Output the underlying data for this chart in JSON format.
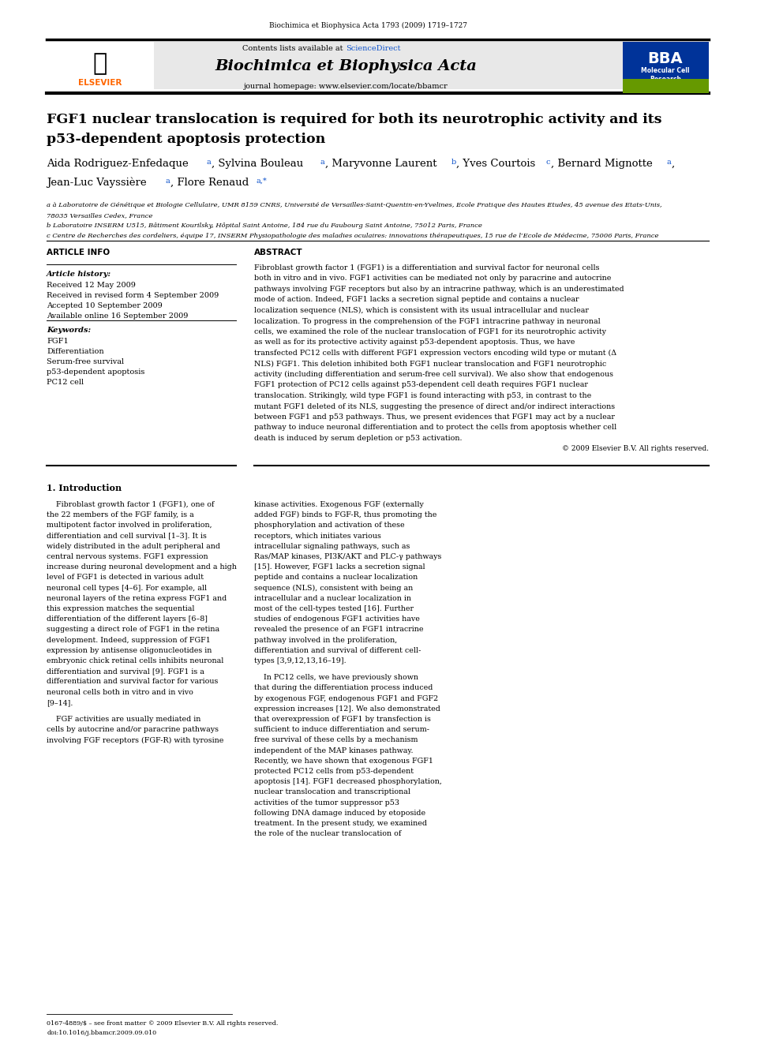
{
  "page_width": 9.92,
  "page_height": 13.23,
  "bg_color": "#ffffff",
  "header_journal_ref": "Biochimica et Biophysica Acta 1793 (2009) 1719–1727",
  "journal_name": "Biochimica et Biophysica Acta",
  "contents_text": "Contents lists available at ",
  "science_direct": "ScienceDirect",
  "journal_homepage": "journal homepage: www.elsevier.com/locate/bbamcr",
  "title_line1": "FGF1 nuclear translocation is required for both its neurotrophic activity and its",
  "title_line2": "p53-dependent apoptosis protection",
  "authors": "Aida Rodriguez-Enfedaque à, Sylvina Bouleau à, Maryvonne Laurent b, Yves Courtois c, Bernard Mignotte à,",
  "authors2": "Jean-Luc Vayssière à, Flore Renaud à,*",
  "affil_a": "à Laboratoire de Génétique et Biologie Cellulaire, UMR 8159 CNRS, Université de Versailles-Saint-Quentin-en-Yvelines, Ecole Pratique des Hautes Etudes, 45 avenue des Etats-Unis,",
  "affil_a2": "78035 Versailles Cedex, France",
  "affil_b": "b Laboratoire INSERM U515, Bâtiment Kourilsky, Hôpital Saint Antoine, 184 rue du Faubourg Saint Antoine, 75012 Paris, France",
  "affil_c": "c Centre de Recherches des cordeliers, équipe 17, INSERM Physiopathologie des maladies oculaires: innovations thérapeutiques, 15 rue de l’Ecole de Médecine, 75006 Paris, France",
  "section_article_info": "ARTICLE INFO",
  "article_history_label": "Article history:",
  "received": "Received 12 May 2009",
  "received_revised": "Received in revised form 4 September 2009",
  "accepted": "Accepted 10 September 2009",
  "available": "Available online 16 September 2009",
  "keywords_label": "Keywords:",
  "keyword1": "FGF1",
  "keyword2": "Differentiation",
  "keyword3": "Serum-free survival",
  "keyword4": "p53-dependent apoptosis",
  "keyword5": "PC12 cell",
  "section_abstract": "ABSTRACT",
  "abstract_text": "Fibroblast growth factor 1 (FGF1) is a differentiation and survival factor for neuronal cells both in vitro and in vivo. FGF1 activities can be mediated not only by paracrine and autocrine pathways involving FGF receptors but also by an intracrine pathway, which is an underestimated mode of action. Indeed, FGF1 lacks a secretion signal peptide and contains a nuclear localization sequence (NLS), which is consistent with its usual intracellular and nuclear localization. To progress in the comprehension of the FGF1 intracrine pathway in neuronal cells, we examined the role of the nuclear translocation of FGF1 for its neurotrophic activity as well as for its protective activity against p53-dependent apoptosis. Thus, we have transfected PC12 cells with different FGF1 expression vectors encoding wild type or mutant (Δ NLS) FGF1. This deletion inhibited both FGF1 nuclear translocation and FGF1 neurotrophic activity (including differentiation and serum-free cell survival). We also show that endogenous FGF1 protection of PC12 cells against p53-dependent cell death requires FGF1 nuclear translocation. Strikingly, wild type FGF1 is found interacting with p53, in contrast to the mutant FGF1 deleted of its NLS, suggesting the presence of direct and/or indirect interactions between FGF1 and p53 pathways. Thus, we present evidences that FGF1 may act by a nuclear pathway to induce neuronal differentiation and to protect the cells from apoptosis whether cell death is induced by serum depletion or p53 activation.",
  "copyright": "© 2009 Elsevier B.V. All rights reserved.",
  "section_intro": "1. Introduction",
  "intro_col1_p1": "    Fibroblast growth factor 1 (FGF1), one of the 22 members of the FGF family, is a multipotent factor involved in proliferation, differentiation and cell survival [1–3]. It is widely distributed in the adult peripheral and central nervous systems. FGF1 expression increase during neuronal development and a high level of FGF1 is detected in various adult neuronal cell types [4–6]. For example, all neuronal layers of the retina express FGF1 and this expression matches the sequential differentiation of the different layers [6–8] suggesting a direct role of FGF1 in the retina development. Indeed, suppression of FGF1 expression by antisense oligonucleotides in embryonic chick retinal cells inhibits neuronal differentiation and survival [9]. FGF1 is a differentiation and survival factor for various neuronal cells both in vitro and in vivo [9–14].",
  "intro_col1_p2": "    FGF activities are usually mediated in cells by autocrine and/or paracrine pathways involving FGF receptors (FGF-R) with tyrosine",
  "intro_col2_p1": "kinase activities. Exogenous FGF (externally added FGF) binds to FGF-R, thus promoting the phosphorylation and activation of these receptors, which initiates various intracellular signaling pathways, such as Ras/MAP kinases, PI3K/AKT and PLC-γ pathways [15]. However, FGF1 lacks a secretion signal peptide and contains a nuclear localization sequence (NLS), consistent with being an intracellular and a nuclear localization in most of the cell-types tested [16]. Further studies of endogenous FGF1 activities have revealed the presence of an FGF1 intracrine pathway involved in the proliferation, differentiation and survival of different cell-types [3,9,12,13,16–19].",
  "intro_col2_p2": "    In PC12 cells, we have previously shown that during the differentiation process induced by exogenous FGF, endogenous FGF1 and FGF2 expression increases [12]. We also demonstrated that overexpression of FGF1 by transfection is sufficient to induce differentiation and serum-free survival of these cells by a mechanism independent of the MAP kinases pathway. Recently, we have shown that exogenous FGF1 protected PC12 cells from p53-dependent apoptosis [14]. FGF1 decreased phosphorylation, nuclear translocation and transcriptional activities of the tumor suppressor p53 following DNA damage induced by etoposide treatment. In the present study, we examined the role of the nuclear translocation of",
  "footer_text1": "0167-4889/$ – see front matter © 2009 Elsevier B.V. All rights reserved.",
  "footer_text2": "doi:10.1016/j.bbamcr.2009.09.010",
  "header_bar_color": "#1a1a1a",
  "link_color": "#1155CC",
  "title_color": "#000000",
  "body_text_color": "#000000",
  "section_header_color": "#000000"
}
